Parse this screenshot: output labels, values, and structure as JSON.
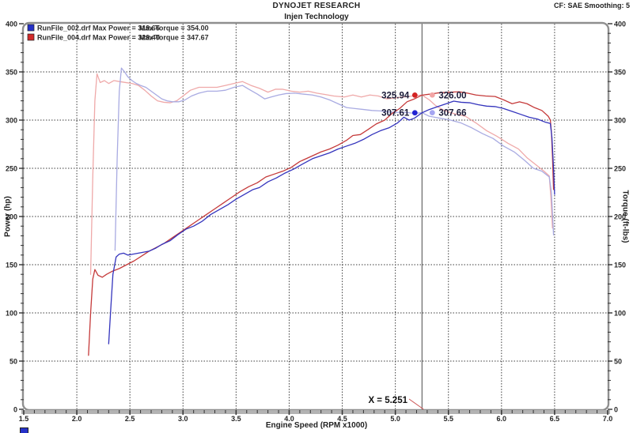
{
  "header": {
    "title": "DYNOJET RESEARCH",
    "subtitle": "Injen Technology",
    "right_info": "CF: SAE  Smoothing: 5"
  },
  "axes": {
    "x": {
      "label": "Engine Speed (RPM x1000)",
      "min": 1.5,
      "max": 7.0,
      "major": 0.5,
      "minor": 0.1
    },
    "y_left": {
      "label": "Power (hp)",
      "min": 0,
      "max": 400,
      "major": 50,
      "minor": 10
    },
    "y_right": {
      "label": "Torque (ft-lbs)",
      "min": 0,
      "max": 400,
      "major": 50,
      "minor": 10
    }
  },
  "legend": [
    {
      "swatch_color": "#2531c8",
      "file_power_label": "RunFile_002.drf Max Power = 319.66",
      "torque_label": "Max Torque = 354.00"
    },
    {
      "swatch_color": "#d22a2a",
      "file_power_label": "RunFile_004.drf Max Power = 329.40",
      "torque_label": "Max Torque = 347.67"
    }
  ],
  "cursor": {
    "x": 5.251,
    "label": "X = 5.251"
  },
  "annotations": [
    {
      "text": "325.94",
      "value": 325.94,
      "side": "left",
      "dot_color": "#d32222",
      "series": "RunFile_004 Power"
    },
    {
      "text": "326.00",
      "value": 326.0,
      "side": "right",
      "dot_color": "#f2a5a5",
      "series": "RunFile_004 Torque"
    },
    {
      "text": "307.61",
      "value": 307.61,
      "side": "left",
      "dot_color": "#2222d3",
      "series": "RunFile_002 Power"
    },
    {
      "text": "307.66",
      "value": 307.66,
      "side": "right",
      "dot_color": "#a5a5f2",
      "series": "RunFile_002 Torque"
    }
  ],
  "footer": {
    "partial_swatch_color": "#2531c8"
  },
  "chart_data": {
    "type": "line",
    "title": "DYNOJET RESEARCH - Injen Technology",
    "xlabel": "Engine Speed (RPM x1000)",
    "ylabel_left": "Power (hp)",
    "ylabel_right": "Torque (ft-lbs)",
    "xlim": [
      1.5,
      7.0
    ],
    "ylim": [
      0,
      400
    ],
    "grid": true,
    "legend_position": "top-left",
    "cursor_x": 5.251,
    "cursor_values": {
      "power_red": 325.94,
      "torque_red": 326.0,
      "power_blue": 307.61,
      "torque_blue": 307.66
    },
    "series": [
      {
        "name": "RunFile_004 Torque (ft-lbs)",
        "color": "#efa9a9",
        "points": [
          [
            2.13,
            140
          ],
          [
            2.15,
            240
          ],
          [
            2.17,
            320
          ],
          [
            2.19,
            348
          ],
          [
            2.22,
            339
          ],
          [
            2.26,
            341
          ],
          [
            2.3,
            338
          ],
          [
            2.35,
            341
          ],
          [
            2.4,
            340
          ],
          [
            2.46,
            339
          ],
          [
            2.52,
            338
          ],
          [
            2.58,
            336
          ],
          [
            2.64,
            331
          ],
          [
            2.7,
            325
          ],
          [
            2.76,
            320
          ],
          [
            2.82,
            318.5
          ],
          [
            2.88,
            318
          ],
          [
            2.94,
            320
          ],
          [
            3.0,
            325
          ],
          [
            3.07,
            331
          ],
          [
            3.15,
            334
          ],
          [
            3.24,
            334
          ],
          [
            3.32,
            334
          ],
          [
            3.4,
            336
          ],
          [
            3.48,
            338
          ],
          [
            3.56,
            340
          ],
          [
            3.64,
            336
          ],
          [
            3.72,
            333
          ],
          [
            3.8,
            329
          ],
          [
            3.87,
            332
          ],
          [
            3.94,
            332
          ],
          [
            4.02,
            330
          ],
          [
            4.1,
            329
          ],
          [
            4.18,
            330
          ],
          [
            4.26,
            328
          ],
          [
            4.34,
            326.5
          ],
          [
            4.42,
            325
          ],
          [
            4.52,
            324
          ],
          [
            4.6,
            326
          ],
          [
            4.68,
            324
          ],
          [
            4.76,
            326
          ],
          [
            4.84,
            325
          ],
          [
            4.92,
            322
          ],
          [
            5.0,
            323
          ],
          [
            5.08,
            324
          ],
          [
            5.16,
            325
          ],
          [
            5.251,
            326.0
          ],
          [
            5.32,
            321
          ],
          [
            5.38,
            315
          ],
          [
            5.46,
            310
          ],
          [
            5.56,
            306.5
          ],
          [
            5.66,
            304
          ],
          [
            5.76,
            297
          ],
          [
            5.86,
            289
          ],
          [
            5.96,
            283
          ],
          [
            6.06,
            276
          ],
          [
            6.16,
            270
          ],
          [
            6.24,
            261
          ],
          [
            6.32,
            254
          ],
          [
            6.4,
            247
          ],
          [
            6.45,
            242
          ],
          [
            6.465,
            220
          ],
          [
            6.48,
            188
          ]
        ]
      },
      {
        "name": "RunFile_002 Torque (ft-lbs)",
        "color": "#a9abe2",
        "points": [
          [
            2.36,
            165
          ],
          [
            2.38,
            260
          ],
          [
            2.4,
            330
          ],
          [
            2.42,
            354
          ],
          [
            2.45,
            350
          ],
          [
            2.48,
            345
          ],
          [
            2.52,
            341
          ],
          [
            2.56,
            338
          ],
          [
            2.6,
            336
          ],
          [
            2.65,
            334
          ],
          [
            2.7,
            330
          ],
          [
            2.75,
            326
          ],
          [
            2.8,
            322
          ],
          [
            2.85,
            320
          ],
          [
            2.9,
            319
          ],
          [
            2.96,
            319
          ],
          [
            3.02,
            321
          ],
          [
            3.08,
            325
          ],
          [
            3.15,
            328
          ],
          [
            3.23,
            330
          ],
          [
            3.32,
            330
          ],
          [
            3.4,
            331
          ],
          [
            3.48,
            334
          ],
          [
            3.56,
            336
          ],
          [
            3.62,
            332
          ],
          [
            3.7,
            327
          ],
          [
            3.77,
            322
          ],
          [
            3.83,
            324
          ],
          [
            3.9,
            326
          ],
          [
            3.97,
            327.5
          ],
          [
            4.05,
            328
          ],
          [
            4.13,
            327
          ],
          [
            4.22,
            326
          ],
          [
            4.3,
            324
          ],
          [
            4.38,
            321
          ],
          [
            4.46,
            317
          ],
          [
            4.54,
            313
          ],
          [
            4.62,
            312
          ],
          [
            4.7,
            311
          ],
          [
            4.78,
            310
          ],
          [
            4.86,
            309.5
          ],
          [
            4.94,
            308.5
          ],
          [
            5.02,
            308
          ],
          [
            5.1,
            308
          ],
          [
            5.18,
            307
          ],
          [
            5.251,
            307.66
          ],
          [
            5.32,
            304
          ],
          [
            5.42,
            302
          ],
          [
            5.52,
            300
          ],
          [
            5.62,
            297
          ],
          [
            5.72,
            292
          ],
          [
            5.82,
            286
          ],
          [
            5.92,
            281
          ],
          [
            6.02,
            273
          ],
          [
            6.12,
            267
          ],
          [
            6.22,
            258
          ],
          [
            6.3,
            250
          ],
          [
            6.38,
            247
          ],
          [
            6.45,
            241
          ],
          [
            6.47,
            225
          ],
          [
            6.49,
            181
          ]
        ]
      },
      {
        "name": "RunFile_004 Power (hp)",
        "color": "#c53a3a",
        "points": [
          [
            2.11,
            56
          ],
          [
            2.13,
            100
          ],
          [
            2.15,
            135
          ],
          [
            2.17,
            145
          ],
          [
            2.2,
            139
          ],
          [
            2.24,
            137
          ],
          [
            2.28,
            140
          ],
          [
            2.33,
            143
          ],
          [
            2.4,
            146
          ],
          [
            2.47,
            150
          ],
          [
            2.54,
            154
          ],
          [
            2.61,
            159
          ],
          [
            2.68,
            164
          ],
          [
            2.75,
            168
          ],
          [
            2.82,
            172
          ],
          [
            2.9,
            178
          ],
          [
            2.98,
            184
          ],
          [
            3.06,
            190
          ],
          [
            3.14,
            196
          ],
          [
            3.22,
            202
          ],
          [
            3.3,
            208
          ],
          [
            3.38,
            214
          ],
          [
            3.46,
            220
          ],
          [
            3.54,
            226
          ],
          [
            3.62,
            231
          ],
          [
            3.7,
            235
          ],
          [
            3.78,
            241
          ],
          [
            3.86,
            244
          ],
          [
            3.94,
            247
          ],
          [
            4.02,
            251
          ],
          [
            4.1,
            257
          ],
          [
            4.2,
            262
          ],
          [
            4.3,
            267
          ],
          [
            4.38,
            270
          ],
          [
            4.46,
            274
          ],
          [
            4.54,
            279
          ],
          [
            4.6,
            284
          ],
          [
            4.67,
            285
          ],
          [
            4.74,
            290
          ],
          [
            4.82,
            296
          ],
          [
            4.9,
            300
          ],
          [
            4.97,
            307
          ],
          [
            5.04,
            312
          ],
          [
            5.11,
            319
          ],
          [
            5.18,
            322
          ],
          [
            5.251,
            325.94
          ],
          [
            5.33,
            327
          ],
          [
            5.42,
            328.5
          ],
          [
            5.52,
            329
          ],
          [
            5.6,
            329.4
          ],
          [
            5.68,
            328
          ],
          [
            5.76,
            326
          ],
          [
            5.85,
            325
          ],
          [
            5.94,
            324.5
          ],
          [
            6.02,
            321
          ],
          [
            6.1,
            317
          ],
          [
            6.17,
            319
          ],
          [
            6.24,
            317
          ],
          [
            6.31,
            313
          ],
          [
            6.38,
            310
          ],
          [
            6.44,
            304
          ],
          [
            6.46,
            300
          ],
          [
            6.47,
            288
          ],
          [
            6.48,
            262
          ],
          [
            6.49,
            228
          ]
        ]
      },
      {
        "name": "RunFile_002 Power (hp)",
        "color": "#3434bd",
        "points": [
          [
            2.3,
            68
          ],
          [
            2.32,
            105
          ],
          [
            2.34,
            140
          ],
          [
            2.37,
            158
          ],
          [
            2.4,
            161
          ],
          [
            2.44,
            162
          ],
          [
            2.48,
            160
          ],
          [
            2.53,
            161
          ],
          [
            2.58,
            162
          ],
          [
            2.63,
            163
          ],
          [
            2.68,
            164
          ],
          [
            2.74,
            167
          ],
          [
            2.8,
            171
          ],
          [
            2.88,
            175
          ],
          [
            2.95,
            181
          ],
          [
            3.03,
            187
          ],
          [
            3.1,
            190
          ],
          [
            3.18,
            195
          ],
          [
            3.26,
            202
          ],
          [
            3.34,
            207
          ],
          [
            3.42,
            212
          ],
          [
            3.5,
            218
          ],
          [
            3.58,
            223
          ],
          [
            3.66,
            228
          ],
          [
            3.72,
            230
          ],
          [
            3.8,
            236
          ],
          [
            3.88,
            240
          ],
          [
            3.96,
            245
          ],
          [
            4.04,
            249
          ],
          [
            4.12,
            254
          ],
          [
            4.22,
            260
          ],
          [
            4.3,
            263
          ],
          [
            4.38,
            266
          ],
          [
            4.46,
            270
          ],
          [
            4.54,
            273
          ],
          [
            4.62,
            276
          ],
          [
            4.7,
            280
          ],
          [
            4.78,
            285
          ],
          [
            4.86,
            289
          ],
          [
            4.94,
            292
          ],
          [
            5.02,
            297
          ],
          [
            5.08,
            303
          ],
          [
            5.13,
            300
          ],
          [
            5.18,
            302
          ],
          [
            5.251,
            307.61
          ],
          [
            5.32,
            311
          ],
          [
            5.4,
            314
          ],
          [
            5.48,
            317
          ],
          [
            5.55,
            319.66
          ],
          [
            5.62,
            318.5
          ],
          [
            5.7,
            318
          ],
          [
            5.78,
            316
          ],
          [
            5.86,
            314.5
          ],
          [
            5.94,
            314
          ],
          [
            6.02,
            312
          ],
          [
            6.1,
            309
          ],
          [
            6.18,
            306
          ],
          [
            6.26,
            303
          ],
          [
            6.34,
            301
          ],
          [
            6.41,
            298
          ],
          [
            6.46,
            296.5
          ],
          [
            6.475,
            282
          ],
          [
            6.49,
            250
          ],
          [
            6.5,
            223
          ]
        ]
      }
    ]
  }
}
